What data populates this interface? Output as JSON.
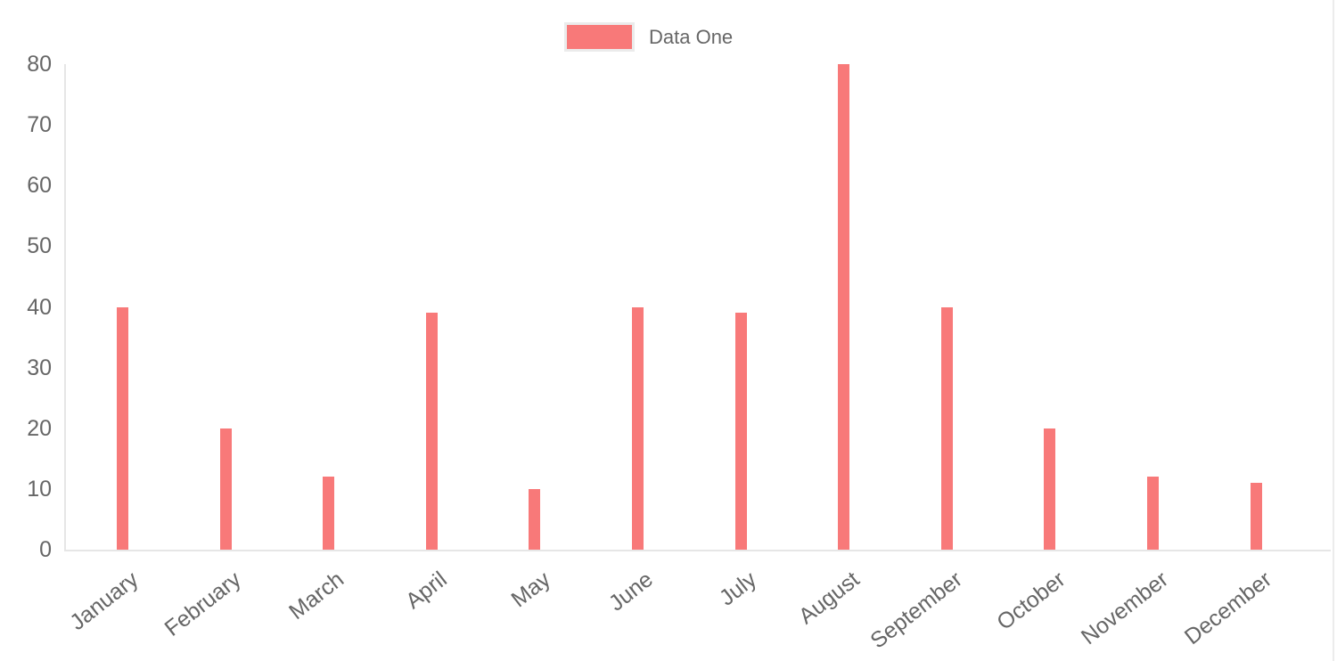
{
  "legend": {
    "items": [
      {
        "label": "Data One",
        "color": "#f87979"
      }
    ]
  },
  "chart_data": {
    "type": "bar",
    "title": "",
    "xlabel": "",
    "ylabel": "",
    "categories": [
      "January",
      "February",
      "March",
      "April",
      "May",
      "June",
      "July",
      "August",
      "September",
      "October",
      "November",
      "December"
    ],
    "series": [
      {
        "name": "Data One",
        "color": "#f87979",
        "values": [
          40,
          20,
          12,
          39,
          10,
          40,
          39,
          80,
          40,
          20,
          12,
          11
        ]
      }
    ],
    "ylim": [
      0,
      80
    ],
    "yticks": [
      0,
      10,
      20,
      30,
      40,
      50,
      60,
      70,
      80
    ],
    "grid": false,
    "legend_position": "top",
    "background": "#ffffff"
  },
  "colors": {
    "bar": "#f87979",
    "axis_line": "#e6e6e6",
    "tick_text": "#666666",
    "legend_swatch_border": "#ebebeb"
  }
}
